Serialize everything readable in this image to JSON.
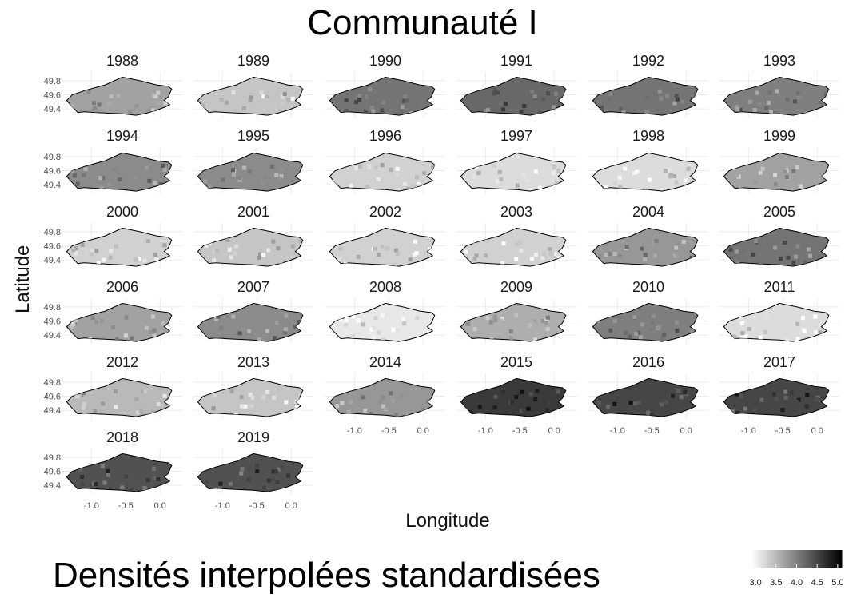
{
  "chart_data": {
    "type": "heatmap",
    "title": "Communauté I",
    "xlabel": "Longitude",
    "ylabel": "Latitude",
    "caption": "Densités interpolées standardisées",
    "panels": [
      "1988",
      "1989",
      "1990",
      "1991",
      "1992",
      "1993",
      "1994",
      "1995",
      "1996",
      "1997",
      "1998",
      "1999",
      "2000",
      "2001",
      "2002",
      "2003",
      "2004",
      "2005",
      "2006",
      "2007",
      "2008",
      "2009",
      "2010",
      "2011",
      "2012",
      "2013",
      "2014",
      "2015",
      "2016",
      "2017",
      "2018",
      "2019"
    ],
    "panel_mean_density": [
      3.7,
      3.4,
      4.1,
      4.2,
      4.1,
      4.0,
      3.9,
      3.9,
      3.3,
      3.2,
      3.2,
      3.7,
      3.3,
      3.4,
      3.3,
      3.3,
      3.8,
      4.1,
      3.7,
      3.9,
      3.1,
      3.6,
      4.0,
      3.2,
      3.5,
      3.4,
      3.8,
      4.6,
      4.5,
      4.5,
      4.4,
      4.4
    ],
    "x_ticks": [
      "-1.0",
      "-0.5",
      "0.0"
    ],
    "x_tick_values": [
      -1.0,
      -0.5,
      0.0
    ],
    "y_ticks": [
      "49.8",
      "49.6",
      "49.4"
    ],
    "y_tick_values": [
      49.8,
      49.6,
      49.4
    ],
    "xlim": [
      -1.4,
      0.3
    ],
    "ylim": [
      49.3,
      49.9
    ],
    "legend": {
      "position": "bottom-right",
      "ticks": [
        "3.0",
        "3.5",
        "4.0",
        "4.5",
        "5.0"
      ],
      "tick_values": [
        3.0,
        3.5,
        4.0,
        4.5,
        5.0
      ],
      "range": [
        2.9,
        5.1
      ],
      "low_color": "#ffffff",
      "high_color": "#000000"
    },
    "grid": true,
    "facet_columns": 6
  }
}
